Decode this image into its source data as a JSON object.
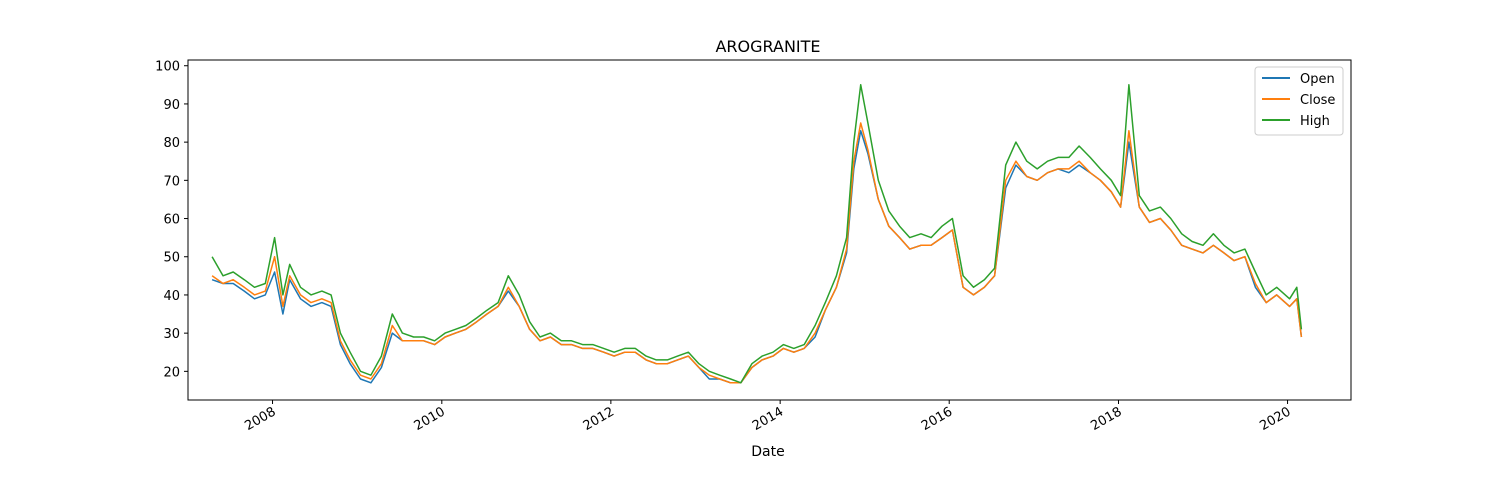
{
  "chart_data": {
    "type": "line",
    "title": "AROGRANITE",
    "xlabel": "Date",
    "ylabel": "",
    "x_axis_type": "date",
    "xlim": [
      "2007-01-01",
      "2020-10-01"
    ],
    "ylim": [
      12.5,
      101.5
    ],
    "x_ticks": [
      {
        "date": "2008-01-01",
        "label": "2008"
      },
      {
        "date": "2010-01-01",
        "label": "2010"
      },
      {
        "date": "2012-01-01",
        "label": "2012"
      },
      {
        "date": "2014-01-01",
        "label": "2014"
      },
      {
        "date": "2016-01-01",
        "label": "2016"
      },
      {
        "date": "2018-01-01",
        "label": "2018"
      },
      {
        "date": "2020-01-01",
        "label": "2020"
      }
    ],
    "y_ticks": [
      20,
      30,
      40,
      50,
      60,
      70,
      80,
      90,
      100
    ],
    "grid": false,
    "legend_position": "top-right",
    "colors": {
      "Open": "#1f77b4",
      "Close": "#ff7f0e",
      "High": "#2ca02c"
    },
    "series": [
      {
        "name": "Open"
      },
      {
        "name": "Close"
      },
      {
        "name": "High"
      }
    ],
    "x": [
      "2007-04-15",
      "2007-06-01",
      "2007-07-15",
      "2007-09-01",
      "2007-10-15",
      "2007-12-01",
      "2008-01-10",
      "2008-02-15",
      "2008-03-15",
      "2008-05-01",
      "2008-06-15",
      "2008-08-01",
      "2008-09-10",
      "2008-10-20",
      "2008-12-01",
      "2009-01-15",
      "2009-03-01",
      "2009-04-15",
      "2009-06-01",
      "2009-07-15",
      "2009-09-01",
      "2009-10-15",
      "2009-12-01",
      "2010-01-15",
      "2010-03-01",
      "2010-04-15",
      "2010-06-01",
      "2010-07-15",
      "2010-09-01",
      "2010-10-15",
      "2010-12-01",
      "2011-01-15",
      "2011-03-01",
      "2011-04-15",
      "2011-06-01",
      "2011-07-15",
      "2011-09-01",
      "2011-10-15",
      "2011-12-01",
      "2012-01-15",
      "2012-03-01",
      "2012-04-15",
      "2012-06-01",
      "2012-07-15",
      "2012-09-01",
      "2012-10-15",
      "2012-12-01",
      "2013-01-15",
      "2013-03-01",
      "2013-04-15",
      "2013-06-01",
      "2013-07-15",
      "2013-09-01",
      "2013-10-15",
      "2013-12-01",
      "2014-01-15",
      "2014-03-01",
      "2014-04-15",
      "2014-06-01",
      "2014-07-15",
      "2014-09-01",
      "2014-10-15",
      "2014-11-15",
      "2014-12-15",
      "2015-01-15",
      "2015-03-01",
      "2015-04-15",
      "2015-06-01",
      "2015-07-15",
      "2015-09-01",
      "2015-10-15",
      "2015-12-01",
      "2016-01-15",
      "2016-03-01",
      "2016-04-15",
      "2016-06-01",
      "2016-07-15",
      "2016-09-01",
      "2016-10-15",
      "2016-12-01",
      "2017-01-15",
      "2017-03-01",
      "2017-04-15",
      "2017-06-01",
      "2017-07-15",
      "2017-09-01",
      "2017-10-15",
      "2017-12-01",
      "2018-01-10",
      "2018-02-15",
      "2018-04-01",
      "2018-05-15",
      "2018-07-01",
      "2018-08-15",
      "2018-10-01",
      "2018-11-15",
      "2019-01-01",
      "2019-02-15",
      "2019-04-01",
      "2019-05-15",
      "2019-07-01",
      "2019-08-15",
      "2019-10-01",
      "2019-11-15",
      "2020-01-10",
      "2020-02-10",
      "2020-03-01"
    ],
    "high": [
      50,
      45,
      46,
      44,
      42,
      43,
      55,
      40,
      48,
      42,
      40,
      41,
      40,
      30,
      25,
      20,
      19,
      24,
      35,
      30,
      29,
      29,
      28,
      30,
      31,
      32,
      34,
      36,
      38,
      45,
      40,
      33,
      29,
      30,
      28,
      28,
      27,
      27,
      26,
      25,
      26,
      26,
      24,
      23,
      23,
      24,
      25,
      22,
      20,
      19,
      18,
      17,
      22,
      24,
      25,
      27,
      26,
      27,
      32,
      38,
      45,
      55,
      80,
      95,
      85,
      70,
      62,
      58,
      55,
      56,
      55,
      58,
      60,
      45,
      42,
      44,
      47,
      74,
      80,
      75,
      73,
      75,
      76,
      76,
      79,
      76,
      73,
      70,
      66,
      95,
      66,
      62,
      63,
      60,
      56,
      54,
      53,
      56,
      53,
      51,
      52,
      46,
      40,
      42,
      39,
      42,
      31
    ],
    "close": [
      45,
      43,
      44,
      42,
      40,
      41,
      50,
      37,
      45,
      40,
      38,
      39,
      38,
      28,
      23,
      19,
      18,
      22,
      32,
      28,
      28,
      28,
      27,
      29,
      30,
      31,
      33,
      35,
      37,
      42,
      37,
      31,
      28,
      29,
      27,
      27,
      26,
      26,
      25,
      24,
      25,
      25,
      23,
      22,
      22,
      23,
      24,
      21,
      19,
      18,
      17,
      17,
      21,
      23,
      24,
      26,
      25,
      26,
      30,
      36,
      42,
      52,
      75,
      85,
      78,
      65,
      58,
      55,
      52,
      53,
      53,
      55,
      57,
      42,
      40,
      42,
      45,
      70,
      75,
      71,
      70,
      72,
      73,
      73,
      75,
      72,
      70,
      67,
      63,
      83,
      63,
      59,
      60,
      57,
      53,
      52,
      51,
      53,
      51,
      49,
      50,
      43,
      38,
      40,
      37,
      39,
      29
    ],
    "open": [
      44,
      43,
      43,
      41,
      39,
      40,
      46,
      35,
      44,
      39,
      37,
      38,
      37,
      27,
      22,
      18,
      17,
      21,
      30,
      28,
      28,
      28,
      27,
      29,
      30,
      31,
      33,
      35,
      37,
      41,
      37,
      31,
      28,
      29,
      27,
      27,
      26,
      26,
      25,
      24,
      25,
      25,
      23,
      22,
      22,
      23,
      24,
      21,
      18,
      18,
      17,
      17,
      21,
      23,
      24,
      26,
      25,
      26,
      29,
      36,
      42,
      51,
      73,
      83,
      77,
      65,
      58,
      55,
      52,
      53,
      53,
      55,
      57,
      42,
      40,
      42,
      45,
      68,
      74,
      71,
      70,
      72,
      73,
      72,
      74,
      72,
      70,
      67,
      63,
      80,
      63,
      59,
      60,
      57,
      53,
      52,
      51,
      53,
      51,
      49,
      50,
      42,
      38,
      40,
      37,
      39,
      29
    ]
  }
}
